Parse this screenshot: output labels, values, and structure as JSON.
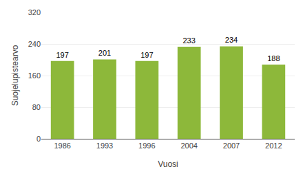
{
  "chart_data": {
    "type": "bar",
    "categories": [
      "1986",
      "1993",
      "1996",
      "2004",
      "2007",
      "2012"
    ],
    "values": [
      197,
      201,
      197,
      233,
      234,
      188
    ],
    "color": "#8db83a",
    "xlabel": "Vuosi",
    "ylabel": "Suojelupistearvo",
    "ylim": [
      0,
      320
    ],
    "yticks": [
      0,
      80,
      160,
      240,
      320
    ],
    "grid": true,
    "data_labels": true
  }
}
